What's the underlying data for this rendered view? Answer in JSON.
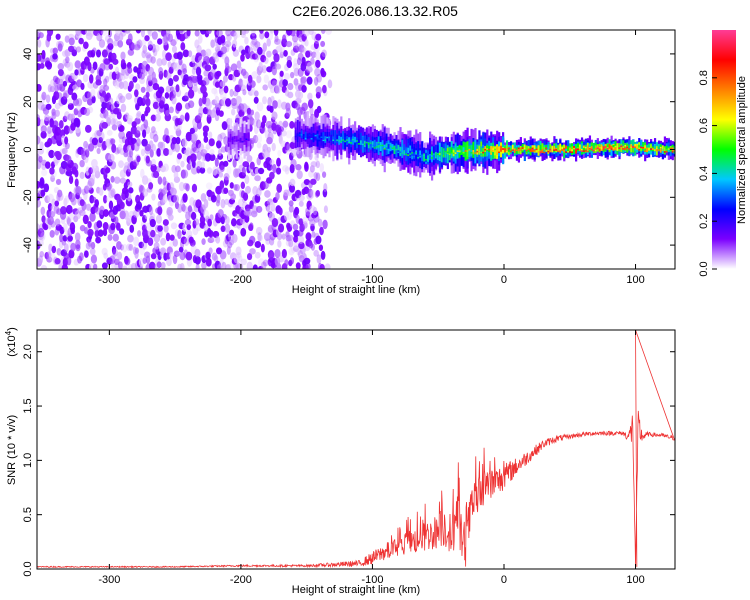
{
  "figure": {
    "title": "C2E6.2026.086.13.32.R05"
  },
  "chart_data": [
    {
      "type": "heatmap",
      "title": "C2E6.2026.086.13.32.R05",
      "xlabel": "Height of straight line (km)",
      "ylabel": "Frequency (Hz)",
      "xlim": [
        -355,
        130
      ],
      "ylim": [
        -50,
        50
      ],
      "x_ticks": [
        -300,
        -200,
        -100,
        0,
        100
      ],
      "x_tick_labels": [
        "-300",
        "-200",
        "-100",
        "0",
        "100"
      ],
      "y_ticks": [
        -40,
        -20,
        0,
        20,
        40
      ],
      "y_tick_labels": [
        "-40",
        "-20",
        "0",
        "20",
        "40"
      ],
      "colorbar": {
        "label": "Normalized spectral amplitude",
        "range": [
          0,
          1
        ],
        "ticks": [
          0,
          0.2,
          0.4,
          0.6,
          0.8
        ],
        "tick_labels": [
          "0.0",
          "0.2",
          "0.4",
          "0.6",
          "0.8"
        ],
        "colors": [
          "#ffffff",
          "#7b00ff",
          "#0000ff",
          "#00c8ff",
          "#00ff00",
          "#ffff00",
          "#ff8000",
          "#ff0000",
          "#ff3c96"
        ]
      },
      "noise_region": {
        "x_range": [
          -355,
          -130
        ],
        "amplitude_range": [
          0.02,
          0.15
        ]
      },
      "ridge": {
        "description_points": [
          {
            "x": -210,
            "freq": 4,
            "amp": 0.15
          },
          {
            "x": -155,
            "freq": 6,
            "amp": 0.3
          },
          {
            "x": -120,
            "freq": 4,
            "amp": 0.4
          },
          {
            "x": -90,
            "freq": 1,
            "amp": 0.45
          },
          {
            "x": -60,
            "freq": -3,
            "amp": 0.45
          },
          {
            "x": -40,
            "freq": -1,
            "amp": 0.6
          },
          {
            "x": 0,
            "freq": 0,
            "amp": 0.8
          },
          {
            "x": 50,
            "freq": 0,
            "amp": 0.85
          },
          {
            "x": 90,
            "freq": 1,
            "amp": 0.85
          },
          {
            "x": 130,
            "freq": 0,
            "amp": 0.75
          }
        ]
      }
    },
    {
      "type": "line",
      "xlabel": "Height of straight line (km)",
      "ylabel": "SNR (10 * v/v)",
      "y_multiplier_label": "(x10",
      "y_multiplier_exp": "4",
      "y_multiplier_close": ")",
      "xlim": [
        -355,
        130
      ],
      "ylim": [
        0,
        2.2
      ],
      "x_ticks": [
        -300,
        -200,
        -100,
        0,
        100
      ],
      "x_tick_labels": [
        "-300",
        "-200",
        "-100",
        "0",
        "100"
      ],
      "y_ticks": [
        0,
        0.5,
        1.0,
        1.5,
        2.0
      ],
      "y_tick_labels": [
        "0.0",
        "0.5",
        "1.0",
        "1.5",
        "2.0"
      ],
      "color": "#ee3333",
      "series": [
        {
          "name": "SNR",
          "x": [
            -355,
            -250,
            -200,
            -150,
            -110,
            -100,
            -90,
            -80,
            -70,
            -60,
            -50,
            -45,
            -40,
            -35,
            -30,
            -25,
            -20,
            -15,
            -10,
            -5,
            0,
            10,
            20,
            30,
            40,
            50,
            60,
            70,
            80,
            90,
            95,
            98,
            100,
            102,
            105,
            110,
            120,
            130
          ],
          "y": [
            0.02,
            0.02,
            0.03,
            0.03,
            0.05,
            0.1,
            0.16,
            0.2,
            0.25,
            0.3,
            0.35,
            0.4,
            0.3,
            0.5,
            0.15,
            0.55,
            0.65,
            0.75,
            0.78,
            0.8,
            0.85,
            0.95,
            1.05,
            1.15,
            1.2,
            1.22,
            1.24,
            1.25,
            1.25,
            1.25,
            1.22,
            1.3,
            0.02,
            1.3,
            1.22,
            1.24,
            1.23,
            1.2
          ],
          "noise": [
            0.005,
            0.005,
            0.008,
            0.01,
            0.03,
            0.06,
            0.08,
            0.1,
            0.12,
            0.14,
            0.16,
            0.2,
            0.2,
            0.25,
            0.2,
            0.2,
            0.2,
            0.18,
            0.15,
            0.15,
            0.12,
            0.08,
            0.06,
            0.04,
            0.03,
            0.02,
            0.02,
            0.02,
            0.02,
            0.02,
            0.05,
            0.2,
            0.0,
            0.2,
            0.05,
            0.02,
            0.02,
            0.02
          ],
          "spikes": [
            {
              "x": 100,
              "y": 2.2
            },
            {
              "x": 101,
              "y": 0.02
            }
          ]
        }
      ]
    }
  ]
}
